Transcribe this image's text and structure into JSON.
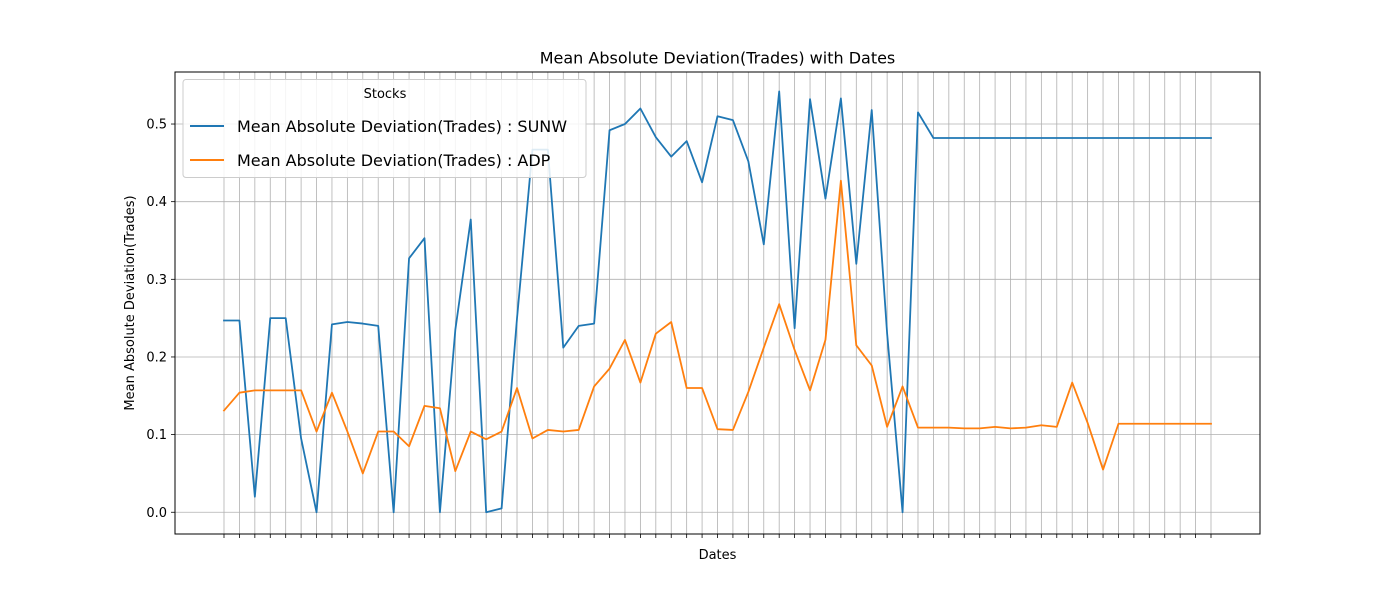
{
  "chart_data": {
    "type": "line",
    "title": "Mean Absolute Deviation(Trades) with Dates",
    "xlabel": "Dates",
    "ylabel": "Mean Absolute Deviation(Trades)",
    "ylim": [
      -0.028,
      0.567
    ],
    "yticks": [
      "0.0",
      "0.1",
      "0.2",
      "0.3",
      "0.4",
      "0.5"
    ],
    "grid": true,
    "legend": {
      "title": "Stocks",
      "placement": "upper-left"
    },
    "x_count": 65,
    "series": [
      {
        "name": "Mean Absolute Deviation(Trades) : SUNW",
        "color": "#1f77b4",
        "values": [
          0.247,
          0.247,
          0.02,
          0.25,
          0.25,
          0.095,
          0.0,
          0.242,
          0.245,
          0.243,
          0.24,
          0.0,
          0.327,
          0.353,
          0.0,
          0.235,
          0.377,
          0.0,
          0.005,
          0.25,
          0.467,
          0.467,
          0.212,
          0.24,
          0.243,
          0.492,
          0.5,
          0.52,
          0.483,
          0.458,
          0.478,
          0.425,
          0.51,
          0.505,
          0.452,
          0.345,
          0.542,
          0.237,
          0.532,
          0.404,
          0.533,
          0.32,
          0.518,
          0.23,
          0.0,
          0.515,
          0.482,
          0.482,
          0.482,
          0.482,
          0.482,
          0.482,
          0.482,
          0.482,
          0.482,
          0.482,
          0.482,
          0.482,
          0.482,
          0.482,
          0.482,
          0.482,
          0.482,
          0.482,
          0.482
        ]
      },
      {
        "name": "Mean Absolute Deviation(Trades) : ADP",
        "color": "#ff7f0e",
        "values": [
          0.131,
          0.154,
          0.157,
          0.157,
          0.157,
          0.157,
          0.104,
          0.154,
          0.104,
          0.05,
          0.104,
          0.104,
          0.085,
          0.137,
          0.134,
          0.053,
          0.104,
          0.094,
          0.104,
          0.16,
          0.095,
          0.106,
          0.104,
          0.106,
          0.162,
          0.185,
          0.222,
          0.167,
          0.23,
          0.245,
          0.16,
          0.16,
          0.107,
          0.106,
          0.155,
          0.212,
          0.268,
          0.209,
          0.157,
          0.222,
          0.427,
          0.215,
          0.189,
          0.11,
          0.162,
          0.109,
          0.109,
          0.109,
          0.108,
          0.108,
          0.11,
          0.108,
          0.109,
          0.112,
          0.11,
          0.167,
          0.115,
          0.055,
          0.114,
          0.114,
          0.114,
          0.114,
          0.114,
          0.114,
          0.114
        ]
      }
    ]
  }
}
